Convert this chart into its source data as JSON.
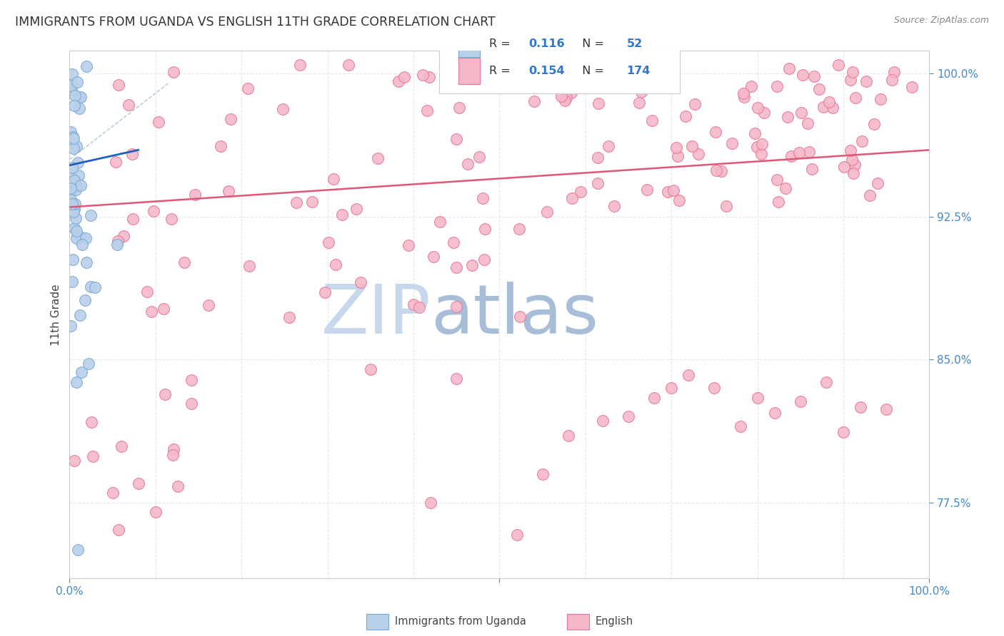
{
  "title": "IMMIGRANTS FROM UGANDA VS ENGLISH 11TH GRADE CORRELATION CHART",
  "source": "Source: ZipAtlas.com",
  "ylabel": "11th Grade",
  "xlim": [
    0.0,
    1.0
  ],
  "ylim": [
    0.735,
    1.012
  ],
  "yticks": [
    0.775,
    0.85,
    0.925,
    1.0
  ],
  "ytick_labels": [
    "77.5%",
    "85.0%",
    "92.5%",
    "100.0%"
  ],
  "legend_r_blue": "0.116",
  "legend_n_blue": "52",
  "legend_r_pink": "0.154",
  "legend_n_pink": "174",
  "blue_color": "#b8d0ea",
  "blue_edge_color": "#7aaad0",
  "pink_color": "#f4b8c8",
  "pink_edge_color": "#e8789a",
  "blue_line_color": "#2060c0",
  "pink_line_color": "#e05878",
  "dashed_line_color": "#9ab8d0",
  "watermark_zip_color": "#c8d8e8",
  "watermark_atlas_color": "#a8c0d8",
  "grid_color": "#e8e8e8",
  "tick_color": "#4488cc",
  "title_color": "#333333",
  "source_color": "#888888",
  "ylabel_color": "#444444",
  "bottom_legend_color": "#444444"
}
